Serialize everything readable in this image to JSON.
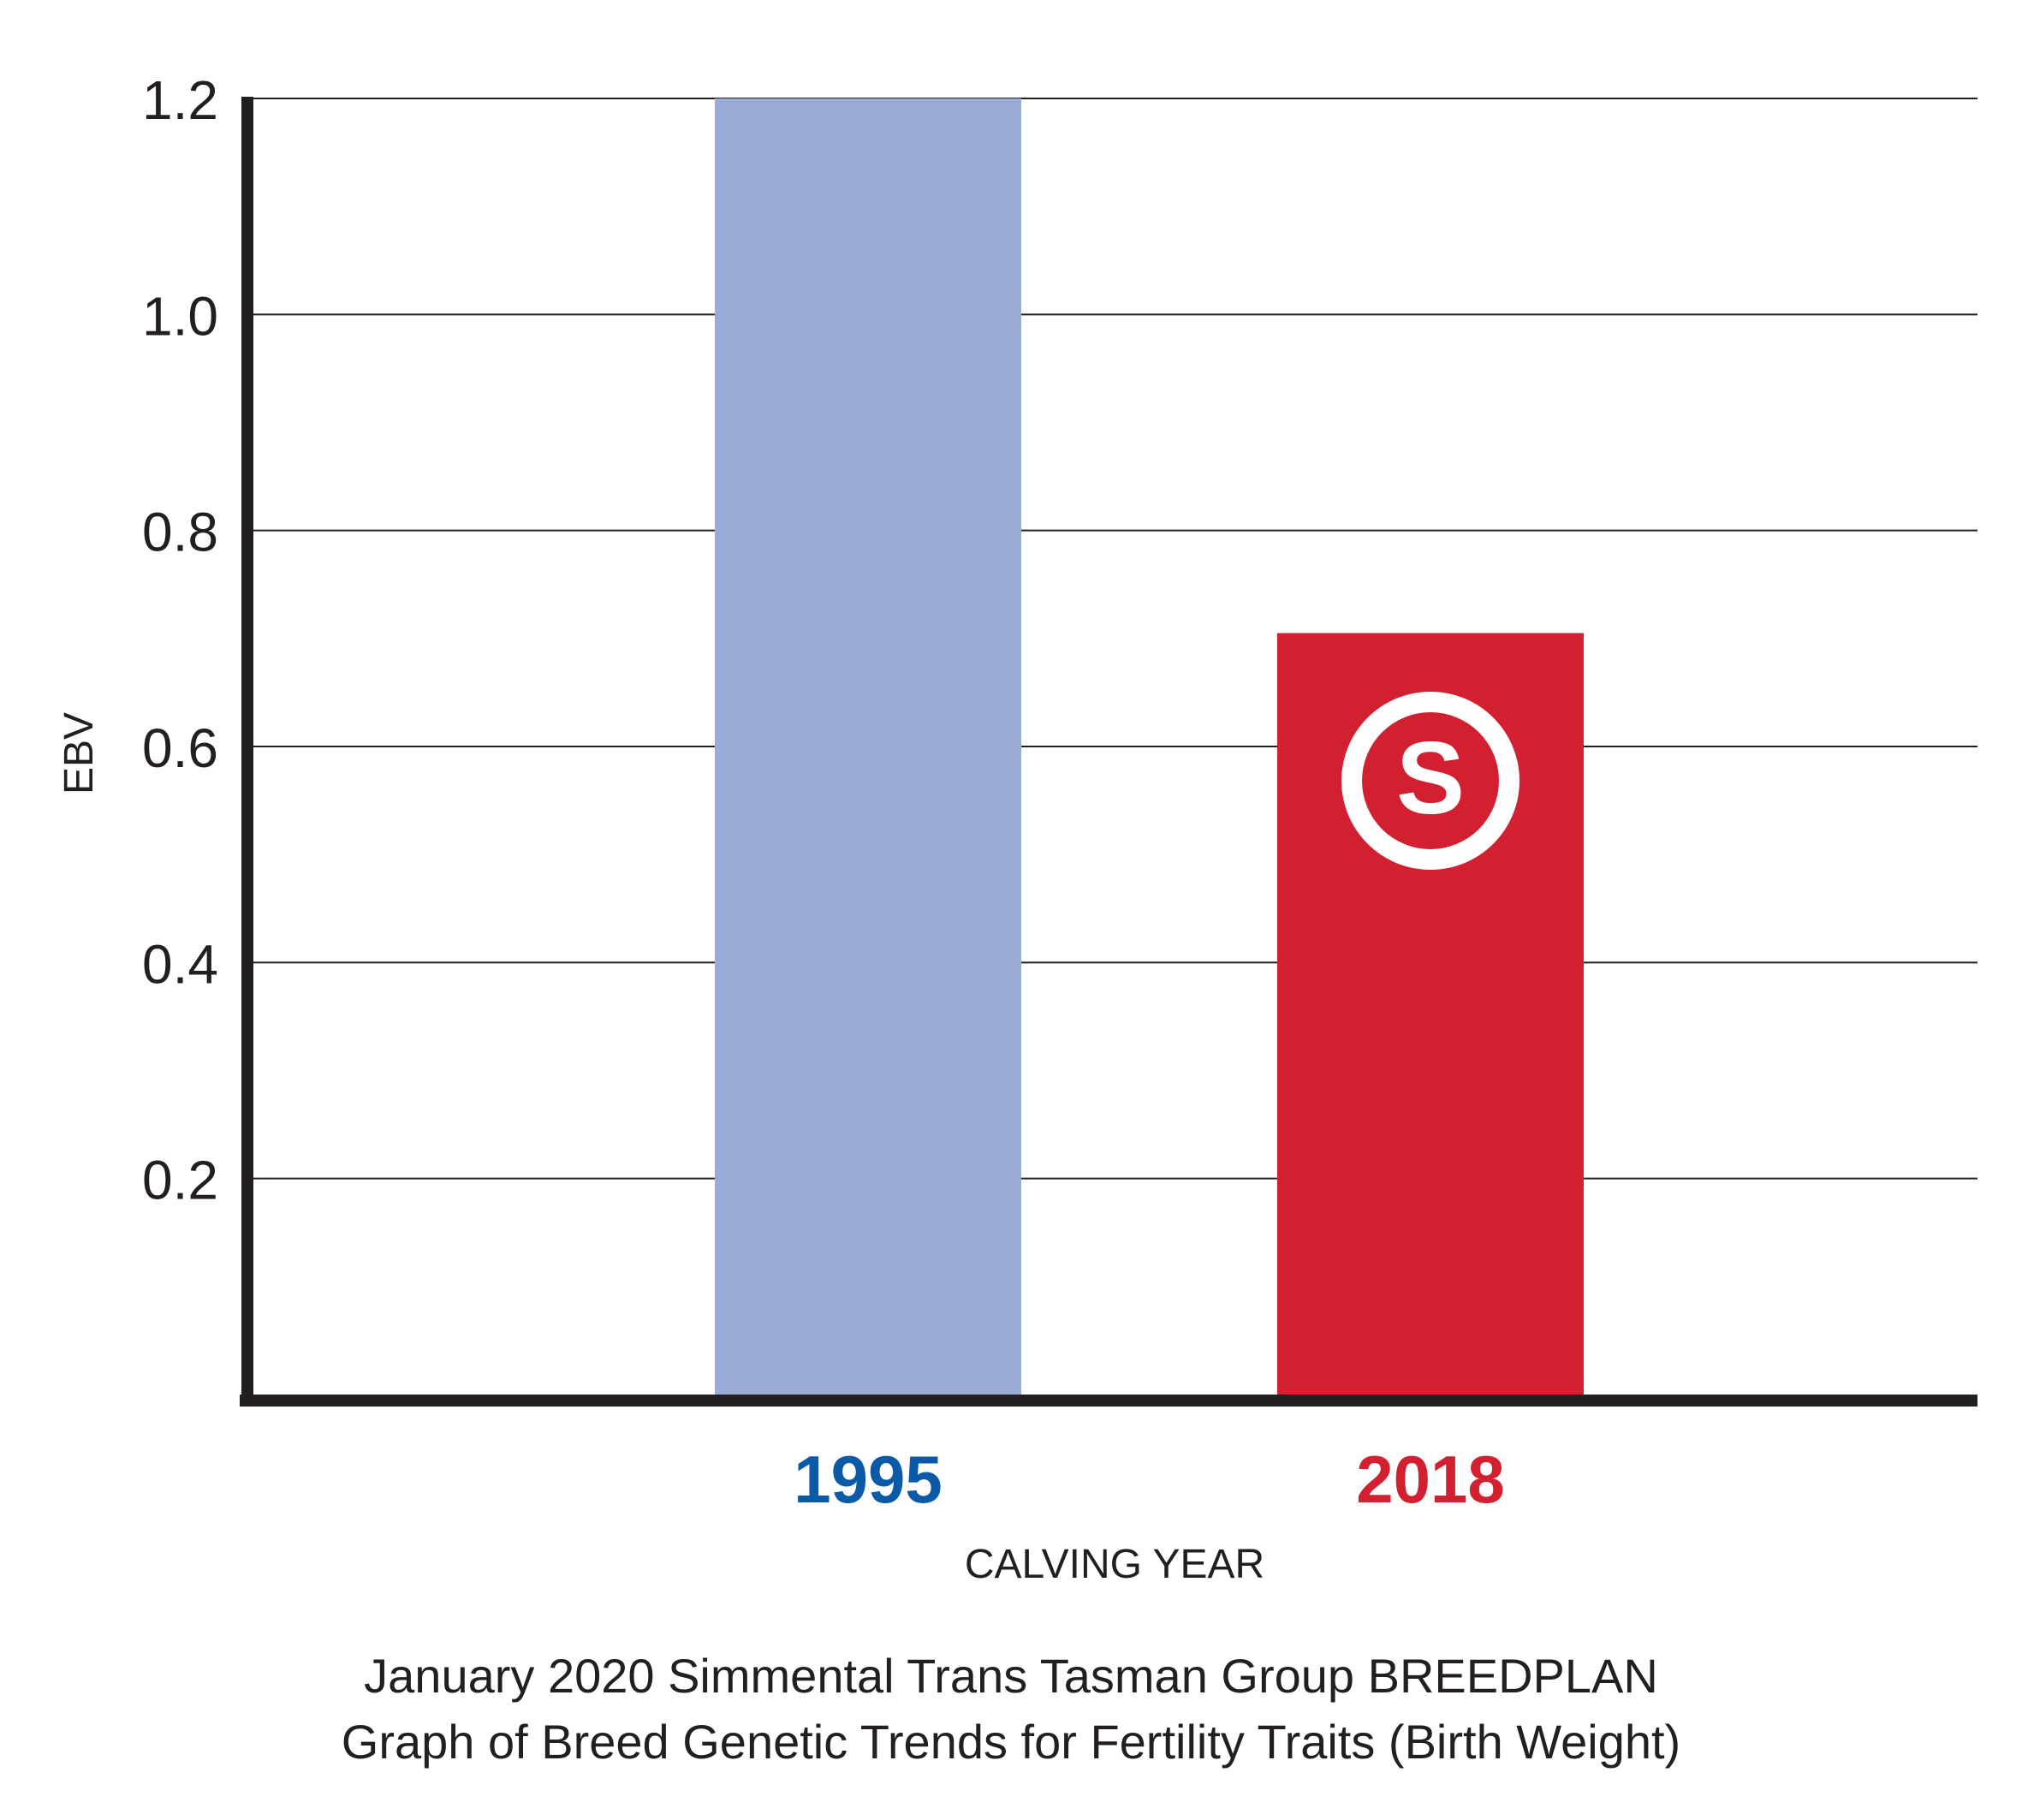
{
  "chart_data": {
    "type": "bar",
    "categories": [
      "1995",
      "2018"
    ],
    "values": [
      1.2,
      0.705
    ],
    "bar_colors": [
      "#9aacd6",
      "#d32031"
    ],
    "category_label_colors": [
      "#0b5aa8",
      "#d32031"
    ],
    "xlabel": "CALVING YEAR",
    "ylabel": "EBV",
    "ylim": [
      0,
      1.2
    ],
    "yticks": [
      "0.2",
      "0.4",
      "0.6",
      "0.8",
      "1.0",
      "1.2"
    ],
    "grid": true
  },
  "logo": {
    "icon": "simmental-s-logo-icon",
    "letter": "S"
  },
  "caption": {
    "line1": "January 2020 Simmental Trans Tasman Group BREEDPLAN",
    "line2": "Graph of Breed Genetic Trends for Fertility Traits (Birth Weight)"
  }
}
